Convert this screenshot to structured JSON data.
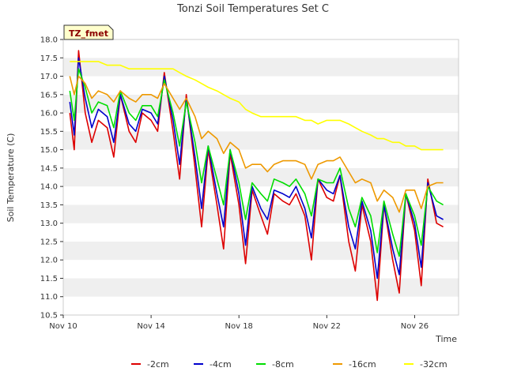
{
  "chart_data": {
    "type": "line",
    "title": "Tonzi Soil Temperatures Set C",
    "xlabel": "Time",
    "ylabel": "Soil Temperature (C)",
    "ylim": [
      10.5,
      18.0
    ],
    "xlim": [
      "Nov 10",
      "Nov 28"
    ],
    "x_ticks": [
      "Nov 10",
      "Nov 14",
      "Nov 18",
      "Nov 22",
      "Nov 26"
    ],
    "y_ticks": [
      "10.5",
      "11.0",
      "11.5",
      "12.0",
      "12.5",
      "13.0",
      "13.5",
      "14.0",
      "14.5",
      "15.0",
      "15.5",
      "16.0",
      "16.5",
      "17.0",
      "17.5",
      "18.0"
    ],
    "grid": "horizontal bands",
    "legend_position": "bottom",
    "tag": "TZ_fmet",
    "x": [
      "Nov 10.3",
      "Nov 10.5",
      "Nov 10.7",
      "Nov 11.0",
      "Nov 11.3",
      "Nov 11.6",
      "Nov 12.0",
      "Nov 12.3",
      "Nov 12.6",
      "Nov 13.0",
      "Nov 13.3",
      "Nov 13.6",
      "Nov 14.0",
      "Nov 14.3",
      "Nov 14.6",
      "Nov 15.0",
      "Nov 15.3",
      "Nov 15.6",
      "Nov 16.0",
      "Nov 16.3",
      "Nov 16.6",
      "Nov 17.0",
      "Nov 17.3",
      "Nov 17.6",
      "Nov 18.0",
      "Nov 18.3",
      "Nov 18.6",
      "Nov 19.0",
      "Nov 19.3",
      "Nov 19.6",
      "Nov 20.0",
      "Nov 20.3",
      "Nov 20.6",
      "Nov 21.0",
      "Nov 21.3",
      "Nov 21.6",
      "Nov 22.0",
      "Nov 22.3",
      "Nov 22.6",
      "Nov 23.0",
      "Nov 23.3",
      "Nov 23.6",
      "Nov 24.0",
      "Nov 24.3",
      "Nov 24.6",
      "Nov 25.0",
      "Nov 25.3",
      "Nov 25.6",
      "Nov 26.0",
      "Nov 26.3",
      "Nov 26.6",
      "Nov 27.0",
      "Nov 27.3"
    ],
    "series": [
      {
        "name": "-2cm",
        "color": "#dd0000",
        "values": [
          16.0,
          15.0,
          17.7,
          16.0,
          15.2,
          15.8,
          15.6,
          14.8,
          16.5,
          15.5,
          15.2,
          16.0,
          15.8,
          15.5,
          17.1,
          15.5,
          14.2,
          16.5,
          14.5,
          12.9,
          15.0,
          13.5,
          12.3,
          14.9,
          13.5,
          11.9,
          13.9,
          13.2,
          12.7,
          13.8,
          13.6,
          13.5,
          13.8,
          13.2,
          12.0,
          14.2,
          13.7,
          13.6,
          14.3,
          12.5,
          11.7,
          13.5,
          12.5,
          10.9,
          13.5,
          12.0,
          11.1,
          13.8,
          12.8,
          11.3,
          14.2,
          13.0,
          12.9
        ]
      },
      {
        "name": "-4cm",
        "color": "#0000cc",
        "values": [
          16.3,
          15.4,
          17.5,
          16.4,
          15.6,
          16.1,
          15.9,
          15.2,
          16.5,
          15.7,
          15.5,
          16.1,
          16.0,
          15.7,
          17.0,
          15.8,
          14.6,
          16.4,
          14.8,
          13.4,
          15.1,
          13.8,
          12.9,
          15.0,
          13.8,
          12.4,
          14.0,
          13.4,
          13.1,
          13.9,
          13.8,
          13.7,
          14.0,
          13.4,
          12.6,
          14.2,
          13.9,
          13.8,
          14.3,
          12.9,
          12.3,
          13.6,
          12.8,
          11.5,
          13.5,
          12.3,
          11.6,
          13.8,
          13.0,
          11.8,
          14.1,
          13.2,
          13.1
        ]
      },
      {
        "name": "-8cm",
        "color": "#00dd00",
        "values": [
          16.6,
          15.8,
          17.2,
          16.7,
          16.0,
          16.3,
          16.2,
          15.6,
          16.6,
          16.0,
          15.8,
          16.2,
          16.2,
          15.9,
          16.9,
          16.0,
          15.1,
          16.3,
          15.2,
          14.1,
          15.1,
          14.2,
          13.5,
          15.0,
          14.1,
          13.1,
          14.1,
          13.8,
          13.6,
          14.2,
          14.1,
          14.0,
          14.2,
          13.8,
          13.2,
          14.2,
          14.1,
          14.1,
          14.5,
          13.4,
          12.9,
          13.7,
          13.2,
          12.2,
          13.6,
          12.7,
          12.1,
          13.8,
          13.2,
          12.4,
          14.0,
          13.6,
          13.5
        ]
      },
      {
        "name": "-16cm",
        "color": "#ee9900",
        "values": [
          17.0,
          16.5,
          17.0,
          16.8,
          16.4,
          16.6,
          16.5,
          16.3,
          16.6,
          16.4,
          16.3,
          16.5,
          16.5,
          16.4,
          16.8,
          16.4,
          16.1,
          16.4,
          15.9,
          15.3,
          15.5,
          15.3,
          14.9,
          15.2,
          15.0,
          14.5,
          14.6,
          14.6,
          14.4,
          14.6,
          14.7,
          14.7,
          14.7,
          14.6,
          14.2,
          14.6,
          14.7,
          14.7,
          14.8,
          14.4,
          14.1,
          14.2,
          14.1,
          13.6,
          13.9,
          13.7,
          13.3,
          13.9,
          13.9,
          13.4,
          14.0,
          14.1,
          14.1
        ]
      },
      {
        "name": "-32cm",
        "color": "#ffff00",
        "values": [
          17.4,
          17.4,
          17.4,
          17.4,
          17.4,
          17.4,
          17.3,
          17.3,
          17.3,
          17.2,
          17.2,
          17.2,
          17.2,
          17.2,
          17.2,
          17.2,
          17.1,
          17.0,
          16.9,
          16.8,
          16.7,
          16.6,
          16.5,
          16.4,
          16.3,
          16.1,
          16.0,
          15.9,
          15.9,
          15.9,
          15.9,
          15.9,
          15.9,
          15.8,
          15.8,
          15.7,
          15.8,
          15.8,
          15.8,
          15.7,
          15.6,
          15.5,
          15.4,
          15.3,
          15.3,
          15.2,
          15.2,
          15.1,
          15.1,
          15.0,
          15.0,
          15.0,
          15.0
        ]
      }
    ]
  }
}
